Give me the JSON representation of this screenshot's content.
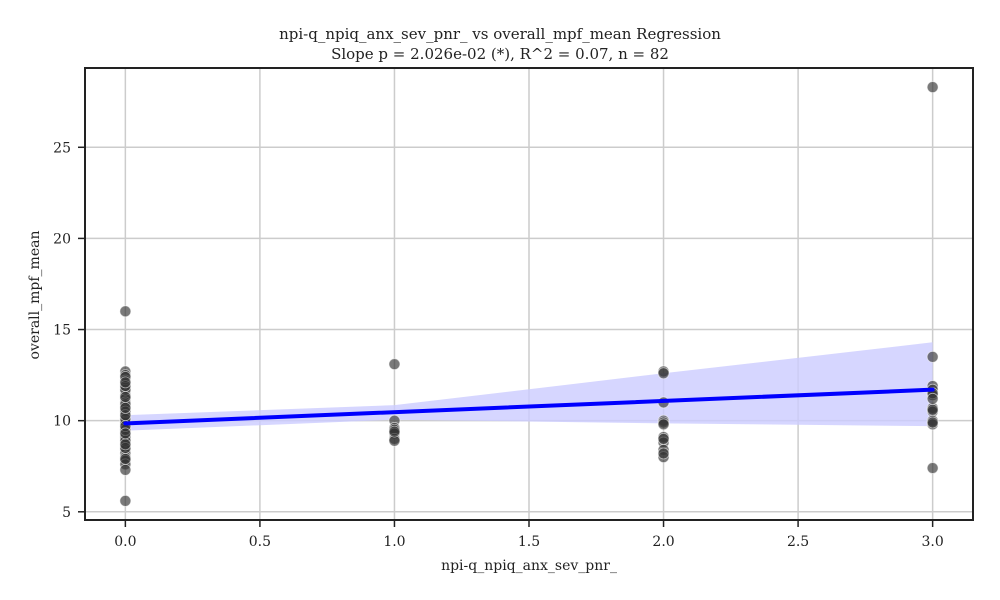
{
  "chart_data": {
    "type": "scatter",
    "title": "npi-q_npiq_anx_sev_pnr_ vs overall_mpf_mean Regression",
    "subtitle": "Slope p = 2.026e-02 (*), R^2 = 0.07, n = 82",
    "xlabel": "npi-q_npiq_anx_sev_pnr_",
    "ylabel": "overall_mpf_mean",
    "xlim": [
      -0.15,
      3.15
    ],
    "ylim": [
      4.55,
      29.35
    ],
    "x_ticks": [
      "0.0",
      "0.5",
      "1.0",
      "1.5",
      "2.0",
      "2.5",
      "3.0"
    ],
    "x_tick_values": [
      0,
      0.5,
      1,
      1.5,
      2,
      2.5,
      3
    ],
    "y_ticks": [
      "5",
      "10",
      "15",
      "20",
      "25"
    ],
    "y_tick_values": [
      5,
      10,
      15,
      20,
      25
    ],
    "grid": true,
    "points_color": "#555555",
    "line_color": "#0000ff",
    "ci_color": "#ccccff",
    "points": [
      {
        "x": 0,
        "y": 16.0
      },
      {
        "x": 0,
        "y": 12.7
      },
      {
        "x": 0,
        "y": 12.5
      },
      {
        "x": 0,
        "y": 12.2
      },
      {
        "x": 0,
        "y": 12.0
      },
      {
        "x": 0,
        "y": 11.8
      },
      {
        "x": 0,
        "y": 11.6
      },
      {
        "x": 0,
        "y": 11.4
      },
      {
        "x": 0,
        "y": 11.2
      },
      {
        "x": 0,
        "y": 11.0
      },
      {
        "x": 0,
        "y": 10.8
      },
      {
        "x": 0,
        "y": 10.6
      },
      {
        "x": 0,
        "y": 10.4
      },
      {
        "x": 0,
        "y": 10.2
      },
      {
        "x": 0,
        "y": 10.0
      },
      {
        "x": 0,
        "y": 9.8
      },
      {
        "x": 0,
        "y": 9.6
      },
      {
        "x": 0,
        "y": 9.4
      },
      {
        "x": 0,
        "y": 9.2
      },
      {
        "x": 0,
        "y": 9.0
      },
      {
        "x": 0,
        "y": 8.8
      },
      {
        "x": 0,
        "y": 8.6
      },
      {
        "x": 0,
        "y": 8.4
      },
      {
        "x": 0,
        "y": 8.2
      },
      {
        "x": 0,
        "y": 8.0
      },
      {
        "x": 0,
        "y": 7.8
      },
      {
        "x": 0,
        "y": 7.6
      },
      {
        "x": 0,
        "y": 7.3
      },
      {
        "x": 0,
        "y": 5.6
      },
      {
        "x": 0,
        "y": 11.7
      },
      {
        "x": 0,
        "y": 10.9
      },
      {
        "x": 0,
        "y": 9.9
      },
      {
        "x": 0,
        "y": 9.1
      },
      {
        "x": 0,
        "y": 8.9
      },
      {
        "x": 0,
        "y": 10.5
      },
      {
        "x": 0,
        "y": 11.3
      },
      {
        "x": 0,
        "y": 12.4
      },
      {
        "x": 0,
        "y": 9.5
      },
      {
        "x": 0,
        "y": 8.5
      },
      {
        "x": 0,
        "y": 10.1
      },
      {
        "x": 0,
        "y": 11.9
      },
      {
        "x": 0,
        "y": 9.7
      },
      {
        "x": 0,
        "y": 8.7
      },
      {
        "x": 0,
        "y": 10.3
      },
      {
        "x": 0,
        "y": 12.1
      },
      {
        "x": 0,
        "y": 7.9
      },
      {
        "x": 1,
        "y": 13.1
      },
      {
        "x": 1,
        "y": 10.0
      },
      {
        "x": 1,
        "y": 9.6
      },
      {
        "x": 1,
        "y": 9.5
      },
      {
        "x": 1,
        "y": 9.3
      },
      {
        "x": 1,
        "y": 9.0
      },
      {
        "x": 1,
        "y": 8.9
      },
      {
        "x": 1,
        "y": 9.4
      },
      {
        "x": 2,
        "y": 12.7
      },
      {
        "x": 2,
        "y": 12.6
      },
      {
        "x": 2,
        "y": 11.0
      },
      {
        "x": 2,
        "y": 10.0
      },
      {
        "x": 2,
        "y": 9.9
      },
      {
        "x": 2,
        "y": 9.8
      },
      {
        "x": 2,
        "y": 9.1
      },
      {
        "x": 2,
        "y": 8.8
      },
      {
        "x": 2,
        "y": 8.4
      },
      {
        "x": 2,
        "y": 8.0
      },
      {
        "x": 2,
        "y": 9.0
      },
      {
        "x": 2,
        "y": 8.2
      },
      {
        "x": 3,
        "y": 28.3
      },
      {
        "x": 3,
        "y": 13.5
      },
      {
        "x": 3,
        "y": 11.9
      },
      {
        "x": 3,
        "y": 11.7
      },
      {
        "x": 3,
        "y": 11.4
      },
      {
        "x": 3,
        "y": 10.7
      },
      {
        "x": 3,
        "y": 10.5
      },
      {
        "x": 3,
        "y": 10.0
      },
      {
        "x": 3,
        "y": 9.8
      },
      {
        "x": 3,
        "y": 7.4
      },
      {
        "x": 3,
        "y": 11.5
      },
      {
        "x": 3,
        "y": 10.6
      },
      {
        "x": 3,
        "y": 9.9
      },
      {
        "x": 3,
        "y": 11.2
      },
      {
        "x": 0,
        "y": 9.3
      },
      {
        "x": 0,
        "y": 10.7
      }
    ],
    "regression": {
      "x": [
        0,
        3
      ],
      "y": [
        9.85,
        11.7
      ]
    },
    "ci_band": {
      "x": [
        0,
        1,
        2,
        3
      ],
      "upper": [
        10.3,
        10.85,
        12.6,
        14.3
      ],
      "lower": [
        9.45,
        10.05,
        9.85,
        9.7
      ]
    }
  }
}
